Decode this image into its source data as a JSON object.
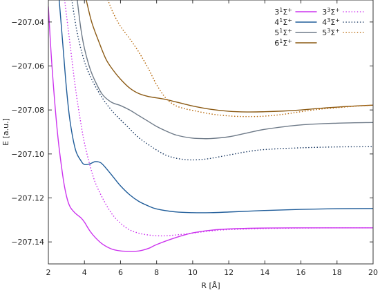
{
  "chart_data": {
    "type": "line",
    "title": "",
    "xlabel": "R [Å]",
    "ylabel": "E [a.u.]",
    "xlim": [
      2,
      20
    ],
    "ylim": [
      -207.15,
      -207.03
    ],
    "x_ticks": [
      2,
      4,
      6,
      8,
      10,
      12,
      14,
      16,
      18,
      20
    ],
    "y_ticks": [
      -207.04,
      -207.06,
      -207.08,
      -207.1,
      -207.12,
      -207.14
    ],
    "x_tick_labels": [
      "2",
      "4",
      "6",
      "8",
      "10",
      "12",
      "14",
      "16",
      "18",
      "20"
    ],
    "y_tick_labels": [
      "−207.04",
      "−207.06",
      "−207.08",
      "−207.10",
      "−207.12",
      "−207.14"
    ],
    "grid": false,
    "legend_position": "top-right",
    "series": [
      {
        "name": "3¹Σ⁺",
        "label_base": "3",
        "label_sup": "1",
        "label_sym": "Σ",
        "label_plus": "+",
        "color": "#cc33ee",
        "style": "solid",
        "x": [
          2.0,
          2.2,
          2.5,
          2.8,
          3.0,
          3.2,
          3.5,
          3.8,
          4.0,
          4.3,
          4.6,
          5.0,
          5.5,
          6.0,
          6.5,
          6.8,
          7.2,
          7.6,
          8.0,
          9.0,
          10.0,
          11.0,
          12.0,
          14.0,
          16.0,
          18.0,
          20.0
        ],
        "y": [
          -207.033,
          -207.06,
          -207.09,
          -207.11,
          -207.119,
          -207.124,
          -207.127,
          -207.129,
          -207.131,
          -207.135,
          -207.138,
          -207.141,
          -207.1432,
          -207.1441,
          -207.1443,
          -207.1443,
          -207.1438,
          -207.1428,
          -207.1412,
          -207.1382,
          -207.1359,
          -207.1347,
          -207.1341,
          -207.1337,
          -207.1336,
          -207.1336,
          -207.1336
        ]
      },
      {
        "name": "4¹Σ⁺",
        "label_base": "4",
        "label_sup": "1",
        "label_sym": "Σ",
        "label_plus": "+",
        "color": "#1f5c99",
        "style": "solid",
        "x": [
          2.6,
          2.8,
          3.0,
          3.2,
          3.5,
          3.8,
          4.0,
          4.3,
          4.6,
          4.9,
          5.2,
          5.6,
          6.0,
          6.5,
          7.0,
          7.5,
          8.0,
          9.0,
          10.0,
          11.0,
          12.0,
          14.0,
          16.0,
          18.0,
          20.0
        ],
        "y": [
          -207.03,
          -207.05,
          -207.07,
          -207.085,
          -207.098,
          -207.103,
          -207.1048,
          -207.1045,
          -207.1035,
          -207.104,
          -207.1065,
          -207.1105,
          -207.1145,
          -207.1185,
          -207.1215,
          -207.1235,
          -207.125,
          -207.1263,
          -207.1267,
          -207.1267,
          -207.1264,
          -207.1257,
          -207.1252,
          -207.1249,
          -207.1248
        ]
      },
      {
        "name": "5¹Σ⁺",
        "label_base": "5",
        "label_sup": "1",
        "label_sym": "Σ",
        "label_plus": "+",
        "color": "#6e7a88",
        "style": "solid",
        "x": [
          3.6,
          3.8,
          4.0,
          4.3,
          4.6,
          5.0,
          5.5,
          6.0,
          6.5,
          7.0,
          7.5,
          8.0,
          8.5,
          9.0,
          9.5,
          10.0,
          10.5,
          11.0,
          12.0,
          13.0,
          14.0,
          16.0,
          18.0,
          20.0
        ],
        "y": [
          -207.03,
          -207.043,
          -207.052,
          -207.061,
          -207.067,
          -207.073,
          -207.0765,
          -207.078,
          -207.08,
          -207.0825,
          -207.085,
          -207.0875,
          -207.0895,
          -207.0912,
          -207.0922,
          -207.0928,
          -207.093,
          -207.093,
          -207.0922,
          -207.0905,
          -207.0888,
          -207.0868,
          -207.086,
          -207.0857
        ]
      },
      {
        "name": "6¹Σ⁺",
        "label_base": "6",
        "label_sup": "1",
        "label_sym": "Σ",
        "label_plus": "+",
        "color": "#8b5a14",
        "style": "solid",
        "x": [
          4.1,
          4.4,
          4.8,
          5.2,
          5.6,
          6.0,
          6.5,
          7.0,
          7.5,
          8.0,
          8.5,
          9.0,
          10.0,
          11.0,
          12.0,
          13.0,
          14.0,
          15.0,
          16.0,
          17.0,
          18.0,
          19.0,
          20.0
        ],
        "y": [
          -207.03,
          -207.04,
          -207.049,
          -207.057,
          -207.062,
          -207.066,
          -207.07,
          -207.0725,
          -207.0738,
          -207.0745,
          -207.0752,
          -207.0762,
          -207.0782,
          -207.0797,
          -207.0806,
          -207.0809,
          -207.0808,
          -207.0805,
          -207.08,
          -207.0793,
          -207.0787,
          -207.0782,
          -207.0778
        ]
      },
      {
        "name": "3³Σ⁺",
        "label_base": "3",
        "label_sup": "3",
        "label_sym": "Σ",
        "label_plus": "+",
        "color": "#cc33ee",
        "style": "dotted",
        "x": [
          2.9,
          3.2,
          3.5,
          3.8,
          4.0,
          4.3,
          4.6,
          5.0,
          5.5,
          6.0,
          6.5,
          7.0,
          7.5,
          8.0,
          8.5,
          9.0,
          10.0,
          11.0,
          12.0,
          14.0,
          16.0,
          18.0,
          20.0
        ],
        "y": [
          -207.03,
          -207.05,
          -207.07,
          -207.086,
          -207.095,
          -207.105,
          -207.113,
          -207.12,
          -207.127,
          -207.1315,
          -207.1345,
          -207.136,
          -207.1368,
          -207.1372,
          -207.1372,
          -207.1369,
          -207.136,
          -207.135,
          -207.1344,
          -207.1339,
          -207.1337,
          -207.1336,
          -207.1336
        ]
      },
      {
        "name": "4³Σ⁺",
        "label_base": "4",
        "label_sup": "3",
        "label_sym": "Σ",
        "label_plus": "+",
        "color": "#1f3d66",
        "style": "dotted",
        "x": [
          3.3,
          3.6,
          4.0,
          4.4,
          4.8,
          5.2,
          5.6,
          6.0,
          6.5,
          7.0,
          7.5,
          8.0,
          8.5,
          9.0,
          9.5,
          10.0,
          10.5,
          11.0,
          12.0,
          13.0,
          14.0,
          16.0,
          18.0,
          20.0
        ],
        "y": [
          -207.03,
          -207.045,
          -207.058,
          -207.066,
          -207.072,
          -207.077,
          -207.081,
          -207.0845,
          -207.0885,
          -207.0925,
          -207.0955,
          -207.0982,
          -207.1005,
          -207.1018,
          -207.1025,
          -207.1027,
          -207.1025,
          -207.102,
          -207.1005,
          -207.099,
          -207.098,
          -207.0972,
          -207.0968,
          -207.0967
        ]
      },
      {
        "name": "5³Σ⁺",
        "label_base": "5",
        "label_sup": "3",
        "label_sym": "Σ",
        "label_plus": "+",
        "color": "#b8690c",
        "style": "dotted",
        "x": [
          5.3,
          5.6,
          6.0,
          6.5,
          7.0,
          7.5,
          8.0,
          8.5,
          9.0,
          9.5,
          10.0,
          11.0,
          12.0,
          13.0,
          14.0,
          15.0,
          16.0,
          17.0,
          18.0,
          19.0,
          20.0
        ],
        "y": [
          -207.03,
          -207.036,
          -207.042,
          -207.0475,
          -207.0535,
          -207.0605,
          -207.0685,
          -207.0745,
          -207.0778,
          -207.0793,
          -207.0802,
          -207.0818,
          -207.0827,
          -207.083,
          -207.0828,
          -207.082,
          -207.0808,
          -207.0797,
          -207.079,
          -207.0783,
          -207.0778
        ]
      }
    ]
  }
}
